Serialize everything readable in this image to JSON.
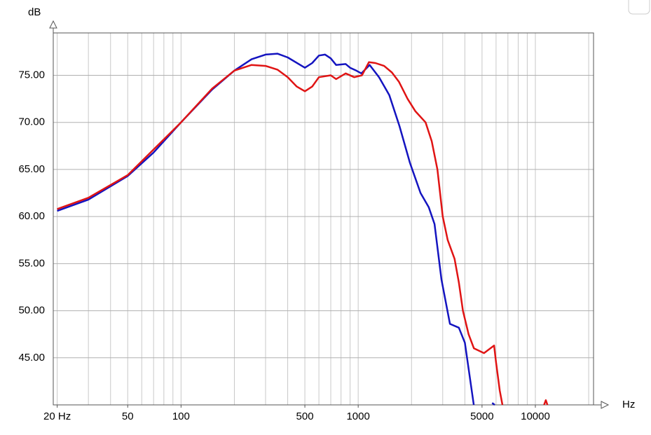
{
  "chart_data": {
    "type": "line",
    "y_axis_label": "dB",
    "x_axis_label": "Hz",
    "xscale": "log",
    "grid": true,
    "xlim": [
      19,
      21300
    ],
    "ylim": [
      40,
      79.5
    ],
    "xticks": [
      {
        "value": 20,
        "label": "20 Hz"
      },
      50,
      100,
      500,
      1000,
      5000,
      10000
    ],
    "yticks": [
      {
        "value": 45,
        "label": "45.00"
      },
      {
        "value": 50,
        "label": "50.00"
      },
      {
        "value": 55,
        "label": "55.00"
      },
      {
        "value": 60,
        "label": "60.00"
      },
      {
        "value": 65,
        "label": "65.00"
      },
      {
        "value": 70,
        "label": "70.00"
      },
      {
        "value": 75,
        "label": "75.00"
      }
    ],
    "series": [
      {
        "color": "#1414c0",
        "x": [
          20,
          30,
          50,
          70,
          100,
          150,
          200,
          250,
          300,
          350,
          400,
          500,
          550,
          600,
          650,
          700,
          750,
          850,
          900,
          975,
          1042,
          1160,
          1311,
          1497,
          1711,
          1960,
          2248,
          2500,
          2697,
          2951,
          3296,
          3700,
          4000,
          4490,
          null,
          5700,
          5900
        ],
        "values": [
          60.6,
          61.8,
          64.3,
          66.8,
          70,
          73.5,
          75.5,
          76.7,
          77.2,
          77.3,
          76.9,
          75.8,
          76.3,
          77.1,
          77.2,
          76.8,
          76.1,
          76.2,
          75.8,
          75.5,
          75.2,
          76.1,
          74.8,
          72.9,
          69.6,
          65.7,
          62.5,
          61,
          59.2,
          53.3,
          48.6,
          48.2,
          46.6,
          40,
          null,
          40.2,
          40
        ]
      },
      {
        "color": "#e01414",
        "x": [
          20,
          30,
          50,
          100,
          150,
          200,
          250,
          300,
          350,
          400,
          450,
          500,
          550,
          600,
          700,
          750,
          850,
          950,
          1050,
          1150,
          1250,
          1400,
          1550,
          1700,
          1900,
          2100,
          2400,
          2600,
          2800,
          3000,
          3200,
          3500,
          3700,
          3900,
          4200,
          4500,
          5130,
          5850,
          6000,
          6300,
          6516,
          null,
          11200,
          11460,
          11700
        ],
        "values": [
          60.8,
          62,
          64.4,
          70,
          73.6,
          75.5,
          76.1,
          76,
          75.6,
          74.8,
          73.8,
          73.3,
          73.8,
          74.8,
          75,
          74.6,
          75.2,
          74.8,
          75,
          76.4,
          76.3,
          76,
          75.3,
          74.3,
          72.5,
          71.2,
          70,
          68,
          65,
          60,
          57.5,
          55.5,
          53,
          50,
          47.5,
          46,
          45.5,
          46.3,
          44.5,
          41.5,
          40,
          null,
          40,
          40.5,
          40
        ]
      }
    ]
  }
}
